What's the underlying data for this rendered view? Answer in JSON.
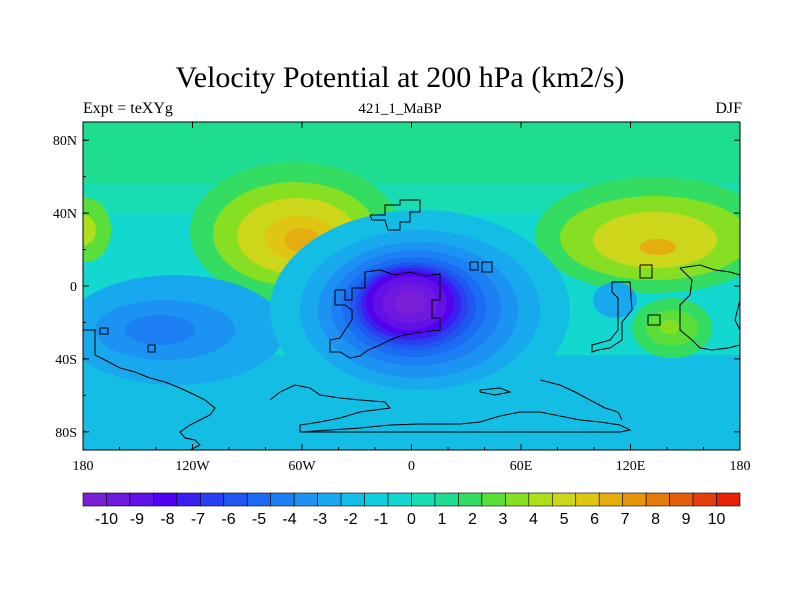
{
  "figure": {
    "title": "Velocity Potential at 200 hPa (km2/s)",
    "left_string": "Expt = teXYg",
    "center_string": "421_1_MaBP",
    "right_string": "DJF"
  },
  "axes": {
    "x_ticks": [
      {
        "label": "180",
        "lon": -180
      },
      {
        "label": "120W",
        "lon": -120
      },
      {
        "label": "60W",
        "lon": -60
      },
      {
        "label": "0",
        "lon": 0
      },
      {
        "label": "60E",
        "lon": 60
      },
      {
        "label": "120E",
        "lon": 120
      },
      {
        "label": "180",
        "lon": 180
      }
    ],
    "y_ticks": [
      {
        "label": "80N",
        "lat": 80
      },
      {
        "label": "40N",
        "lat": 40
      },
      {
        "label": "0",
        "lat": 0
      },
      {
        "label": "40S",
        "lat": -40
      },
      {
        "label": "80S",
        "lat": -80
      }
    ],
    "lon_range": [
      -180,
      180
    ],
    "lat_range": [
      -90,
      90
    ]
  },
  "colorbar": {
    "levels": [
      -10,
      -9,
      -8,
      -7,
      -6,
      -5,
      -4,
      -3,
      -2,
      -1,
      0,
      1,
      2,
      3,
      4,
      5,
      6,
      7,
      8,
      9,
      10
    ],
    "labels": [
      "-10",
      "-9",
      "-8",
      "-7",
      "-6",
      "-5",
      "-4",
      "-3",
      "-2",
      "-1",
      "0",
      "1",
      "2",
      "3",
      "4",
      "5",
      "6",
      "7",
      "8",
      "9",
      "10"
    ],
    "colors": [
      "#7b1fd6",
      "#6f18e0",
      "#6210e8",
      "#5400f0",
      "#3a20f0",
      "#2a40f0",
      "#1e58f0",
      "#1b6cf2",
      "#1c80f4",
      "#1c93f3",
      "#18a8ee",
      "#14bde4",
      "#12cddd",
      "#12d8cf",
      "#18dcb2",
      "#1edc90",
      "#35dc62",
      "#5bde3a",
      "#86df22",
      "#addf1a",
      "#ccd61a",
      "#e0c512",
      "#e5ad10",
      "#e5940e",
      "#e47a0c",
      "#e45e0a",
      "#e34009",
      "#e32208"
    ]
  },
  "colors": {
    "background_field": "#14bde4",
    "coast_line": "#000000"
  },
  "map_features": {
    "centers": [
      {
        "type": "min",
        "lon": 0,
        "lat": -10,
        "value": -10
      },
      {
        "type": "max",
        "lon": -90,
        "lat": 27,
        "value": 5
      },
      {
        "type": "max",
        "lon": 125,
        "lat": 20,
        "value": 5
      },
      {
        "type": "max",
        "lon": 135,
        "lat": -25,
        "value": 4
      }
    ]
  }
}
